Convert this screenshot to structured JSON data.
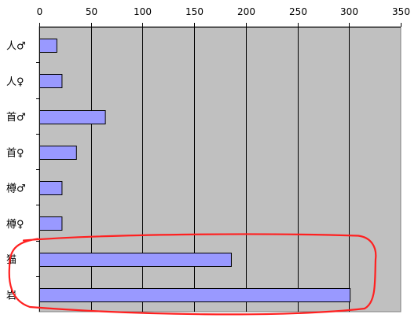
{
  "chart_data": {
    "type": "bar",
    "orientation": "horizontal",
    "title": "",
    "xlabel": "",
    "ylabel": "",
    "categories": [
      "人♂",
      "人♀",
      "首♂",
      "首♀",
      "樽♂",
      "樽♀",
      "猫",
      "岩"
    ],
    "values": [
      17,
      22,
      64,
      36,
      22,
      22,
      186,
      301
    ],
    "xlim": [
      0,
      350
    ],
    "x_ticks": [
      0,
      50,
      100,
      150,
      200,
      250,
      300,
      350
    ],
    "x_tick_labels": [
      "0",
      "50",
      "100",
      "150",
      "200",
      "250",
      "300",
      "350"
    ],
    "x_axis_position": "top",
    "grid": "vertical",
    "legend": "none",
    "plot_background": "#c0c0c0",
    "bar_color": "#9999ff",
    "bar_edge_color": "#000000",
    "highlight": {
      "shape": "hand-drawn-outline",
      "color": "#ff2020",
      "categories": [
        "猫",
        "岩"
      ]
    }
  }
}
